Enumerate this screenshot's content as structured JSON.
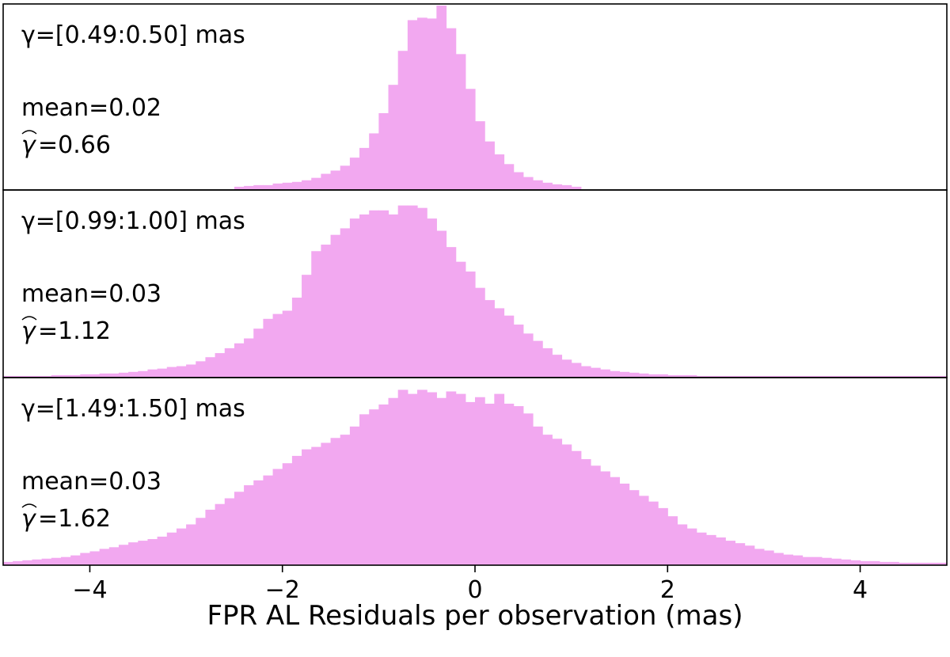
{
  "chart_data": {
    "type": "bar",
    "xlabel": "FPR AL Residuals per observation (mas)",
    "xlim": [
      -4.9,
      4.9
    ],
    "xticks": [
      -4,
      -2,
      0,
      2,
      4
    ],
    "xtick_labels": [
      "−4",
      "−2",
      "0",
      "2",
      "4"
    ],
    "bin_width": 0.1,
    "bar_color": "#f2a8f0",
    "grid": false,
    "panels": [
      {
        "gamma_range": "γ=[0.49:0.50] mas",
        "mean_label": "mean=0.02",
        "gamma_hat_label": "=0.66",
        "ylim": [
          0,
          230
        ],
        "bins_start": -2.5,
        "values": [
          4,
          5,
          6,
          6,
          8,
          9,
          10,
          12,
          15,
          20,
          24,
          30,
          40,
          52,
          70,
          95,
          130,
          172,
          210,
          213,
          212,
          228,
          200,
          168,
          125,
          85,
          60,
          44,
          32,
          22,
          16,
          12,
          9,
          7,
          6,
          4
        ]
      },
      {
        "gamma_range": "γ=[0.99:1.00] mas",
        "mean_label": "mean=0.03",
        "gamma_hat_label": "=1.12",
        "ylim": [
          0,
          230
        ],
        "bins_start": -4.9,
        "values": [
          2,
          2,
          2,
          2,
          2,
          3,
          3,
          3,
          4,
          4,
          5,
          5,
          6,
          7,
          8,
          10,
          11,
          13,
          14,
          16,
          20,
          25,
          30,
          36,
          42,
          48,
          60,
          72,
          78,
          82,
          98,
          126,
          155,
          163,
          175,
          183,
          195,
          200,
          205,
          205,
          200,
          211,
          211,
          208,
          195,
          180,
          160,
          142,
          130,
          110,
          95,
          85,
          76,
          65,
          54,
          45,
          36,
          28,
          22,
          18,
          14,
          12,
          10,
          8,
          7,
          6,
          5,
          4,
          4,
          3,
          3,
          3,
          2,
          2,
          2,
          2,
          2,
          2,
          2,
          2,
          2,
          2,
          2,
          2,
          2,
          2,
          2,
          2,
          2,
          2,
          2,
          2,
          2,
          2,
          2,
          2,
          2,
          2
        ]
      },
      {
        "gamma_range": "γ=[1.49:1.50] mas",
        "mean_label": "mean=0.03",
        "gamma_hat_label": "=1.62",
        "ylim": [
          0,
          230
        ],
        "bins_start": -4.9,
        "values": [
          4,
          5,
          6,
          7,
          8,
          9,
          10,
          12,
          15,
          17,
          20,
          22,
          25,
          28,
          30,
          32,
          35,
          40,
          45,
          50,
          58,
          68,
          75,
          82,
          90,
          98,
          104,
          110,
          118,
          125,
          134,
          142,
          145,
          150,
          156,
          160,
          170,
          185,
          191,
          197,
          205,
          215,
          210,
          215,
          212,
          205,
          213,
          210,
          200,
          206,
          198,
          210,
          198,
          195,
          186,
          170,
          160,
          155,
          148,
          140,
          130,
          122,
          115,
          108,
          100,
          92,
          85,
          78,
          70,
          60,
          50,
          45,
          40,
          37,
          34,
          30,
          27,
          24,
          20,
          18,
          15,
          13,
          12,
          10,
          10,
          9,
          8,
          7,
          6,
          5,
          5,
          4,
          4,
          3,
          3,
          3,
          3,
          3
        ]
      }
    ]
  }
}
